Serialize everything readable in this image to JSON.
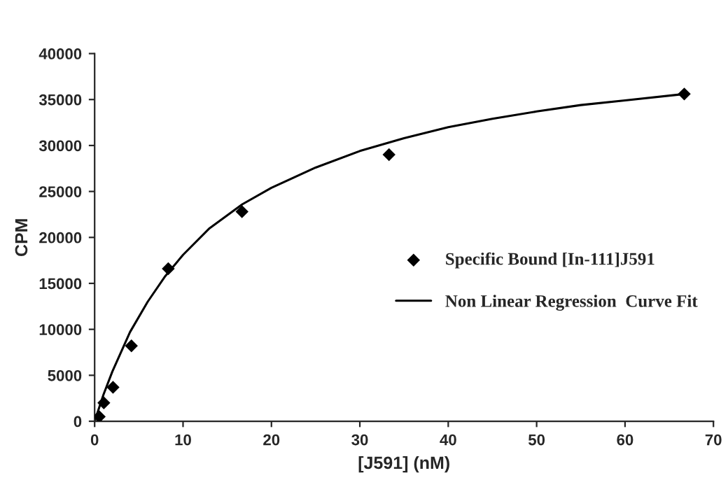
{
  "chart_data": {
    "type": "scatter",
    "xlabel": "[J591] (nM)",
    "ylabel": "CPM",
    "xlim": [
      0,
      70
    ],
    "xticks": [
      0,
      10,
      20,
      30,
      40,
      50,
      60,
      70
    ],
    "ylim": [
      0,
      40000
    ],
    "yticks": [
      0,
      5000,
      10000,
      15000,
      20000,
      25000,
      30000,
      35000,
      40000
    ],
    "legend": "right",
    "grid": false,
    "series": [
      {
        "name": "Specific Bound [In-111]J591",
        "marker": "diamond",
        "color": "#000000",
        "x": [
          0.52,
          1.04,
          2.08,
          4.16,
          8.33,
          16.67,
          33.3,
          66.7
        ],
        "values": [
          500,
          2000,
          3700,
          8200,
          16600,
          22800,
          29000,
          35600
        ]
      },
      {
        "name": "Non Linear Regression  Curve Fit",
        "type": "line",
        "marker": "none",
        "line_style": "solid",
        "color": "#000000",
        "x": [
          0,
          1,
          2,
          4,
          6,
          8,
          10,
          13,
          16.7,
          20,
          25,
          30,
          35,
          40,
          45,
          50,
          55,
          60,
          66.7
        ],
        "values": [
          0,
          2900,
          5400,
          9700,
          13000,
          15800,
          18100,
          21000,
          23600,
          25400,
          27600,
          29400,
          30800,
          32000,
          32900,
          33700,
          34400,
          34900,
          35600
        ]
      }
    ]
  }
}
